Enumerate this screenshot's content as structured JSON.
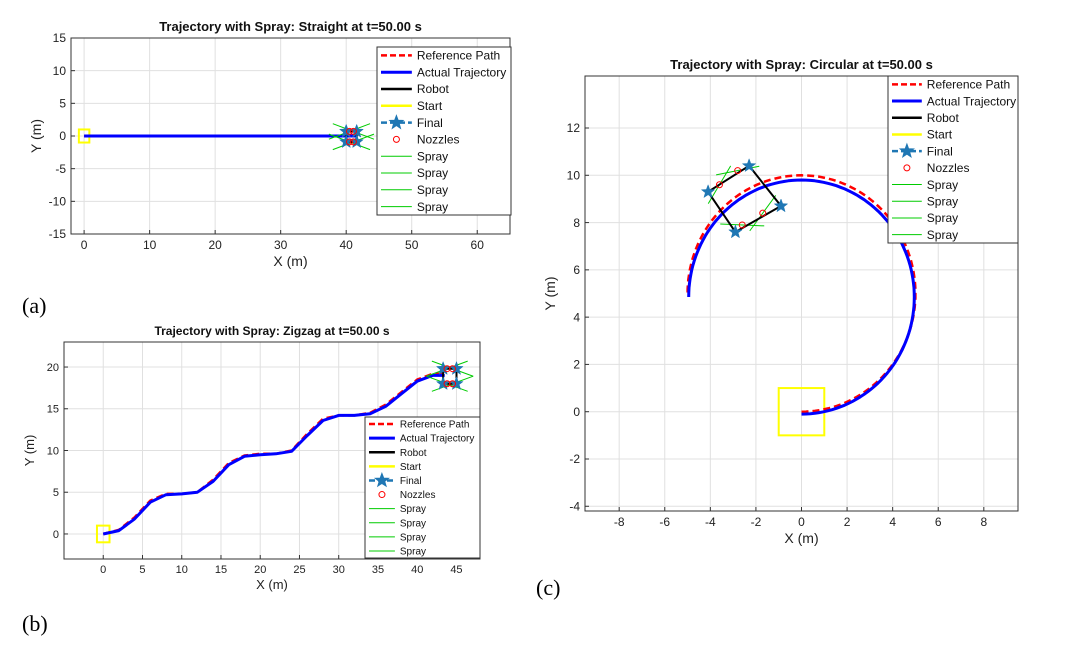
{
  "panel_labels": [
    "(a)",
    "(b)",
    "(c)"
  ],
  "legend_entries": [
    "Reference Path",
    "Actual Trajectory",
    "Robot",
    "Start",
    "Final",
    "Nozzles",
    "Spray",
    "Spray",
    "Spray",
    "Spray"
  ],
  "colors": {
    "reference": "#ff0000",
    "actual": "#0000ff",
    "robot": "#000000",
    "start": "#ffff00",
    "final": "#1f77b4",
    "nozzle": "#ff0000",
    "spray": "#00cc00",
    "grid": "#e0e0e0"
  },
  "chart_data": [
    {
      "type": "line",
      "title": "Trajectory with Spray: Straight at t=50.00 s",
      "xlabel": "X (m)",
      "ylabel": "Y (m)",
      "xlim": [
        -2,
        65
      ],
      "ylim": [
        -15,
        15
      ],
      "xticks": [
        0,
        10,
        20,
        30,
        40,
        50,
        60
      ],
      "yticks": [
        -15,
        -10,
        -5,
        0,
        5,
        10,
        15
      ],
      "grid": true,
      "legend": "top-right",
      "series": [
        {
          "name": "Reference Path",
          "x": [
            0,
            41.5
          ],
          "y": [
            0,
            0
          ]
        },
        {
          "name": "Actual Trajectory",
          "x": [
            0,
            41.5
          ],
          "y": [
            0,
            0
          ]
        }
      ],
      "start_box": {
        "x": [
          -0.8,
          0.8
        ],
        "y": [
          -1,
          1
        ]
      },
      "robot_corners": [
        [
          40,
          0.7
        ],
        [
          41.6,
          0.7
        ],
        [
          41.6,
          -0.9
        ],
        [
          40,
          -0.9
        ]
      ],
      "final_markers": [
        [
          40,
          0.7
        ],
        [
          41.6,
          0.7
        ],
        [
          41.6,
          -0.9
        ],
        [
          40,
          -0.9
        ]
      ],
      "nozzles": [
        [
          40.5,
          0.7
        ],
        [
          41.1,
          0.7
        ],
        [
          40.5,
          -0.9
        ],
        [
          41.1,
          -0.9
        ]
      ]
    },
    {
      "type": "line",
      "title": "Trajectory with Spray: Zigzag at t=50.00 s",
      "xlabel": "X (m)",
      "ylabel": "Y (m)",
      "xlim": [
        -5,
        48
      ],
      "ylim": [
        -3,
        23
      ],
      "xticks": [
        0,
        5,
        10,
        15,
        20,
        25,
        30,
        35,
        40,
        45
      ],
      "yticks": [
        0,
        5,
        10,
        15,
        20
      ],
      "grid": true,
      "legend": "bottom-right",
      "series": [
        {
          "name": "Reference Path",
          "x": [
            0,
            2,
            4,
            6,
            8,
            10,
            12,
            14,
            16,
            18,
            20,
            22,
            24,
            26,
            28,
            30,
            32,
            34,
            36,
            38,
            40,
            42,
            43.5
          ],
          "y": [
            0,
            0.5,
            2,
            4,
            4.8,
            4.8,
            5,
            6.5,
            8.5,
            9.4,
            9.6,
            9.6,
            10,
            12,
            13.8,
            14.2,
            14.2,
            14.5,
            15.5,
            17,
            18.5,
            19.2,
            19.2
          ]
        },
        {
          "name": "Actual Trajectory",
          "x": [
            0,
            2,
            4,
            6,
            8,
            10,
            12,
            14,
            16,
            18,
            20,
            22,
            24,
            26,
            28,
            30,
            32,
            34,
            36,
            38,
            40,
            42,
            43.5
          ],
          "y": [
            0,
            0.4,
            1.8,
            3.8,
            4.7,
            4.8,
            5,
            6.3,
            8.3,
            9.3,
            9.5,
            9.6,
            9.9,
            11.8,
            13.6,
            14.2,
            14.2,
            14.4,
            15.3,
            16.8,
            18.3,
            19,
            19
          ]
        }
      ],
      "start_box": {
        "x": [
          -0.8,
          0.8
        ],
        "y": [
          -1,
          1
        ]
      },
      "robot_corners": [
        [
          43.3,
          19.8
        ],
        [
          45,
          19.8
        ],
        [
          45,
          18
        ],
        [
          43.3,
          18
        ]
      ],
      "final_markers": [
        [
          43.3,
          19.8
        ],
        [
          45,
          19.8
        ],
        [
          45,
          18
        ],
        [
          43.3,
          18
        ]
      ],
      "nozzles": [
        [
          43.8,
          19.8
        ],
        [
          44.5,
          19.8
        ],
        [
          43.8,
          18
        ],
        [
          44.5,
          18
        ]
      ]
    },
    {
      "type": "line",
      "title": "Trajectory with Spray: Circular at t=50.00 s",
      "xlabel": "X (m)",
      "ylabel": "Y (m)",
      "xlim": [
        -9.5,
        9.5
      ],
      "ylim": [
        -4.2,
        14.2
      ],
      "xticks": [
        -8,
        -6,
        -4,
        -2,
        0,
        2,
        4,
        6,
        8
      ],
      "yticks": [
        -4,
        -2,
        0,
        2,
        4,
        6,
        8,
        10,
        12
      ],
      "grid": true,
      "legend": "top-right",
      "series": [
        {
          "name": "Reference Path",
          "circle": {
            "cx": 0,
            "cy": 5,
            "r": 5,
            "start_deg": -90,
            "end_deg": 180,
            "ccw": true
          }
        },
        {
          "name": "Actual Trajectory",
          "circle": {
            "cx": 0,
            "cy": 4.85,
            "r": 4.95,
            "start_deg": -90,
            "end_deg": 180,
            "ccw": true
          }
        }
      ],
      "start_box": {
        "x": [
          -1,
          1
        ],
        "y": [
          -1,
          1
        ]
      },
      "robot_corners": [
        [
          -2.3,
          10.4
        ],
        [
          -0.9,
          8.7
        ],
        [
          -2.9,
          7.6
        ],
        [
          -4.1,
          9.3
        ]
      ],
      "final_markers": [
        [
          -2.3,
          10.4
        ],
        [
          -0.9,
          8.7
        ],
        [
          -2.9,
          7.6
        ],
        [
          -4.1,
          9.3
        ]
      ],
      "nozzles": [
        [
          -2.8,
          10.2
        ],
        [
          -3.6,
          9.6
        ],
        [
          -2.6,
          7.9
        ],
        [
          -1.7,
          8.4
        ]
      ]
    }
  ]
}
